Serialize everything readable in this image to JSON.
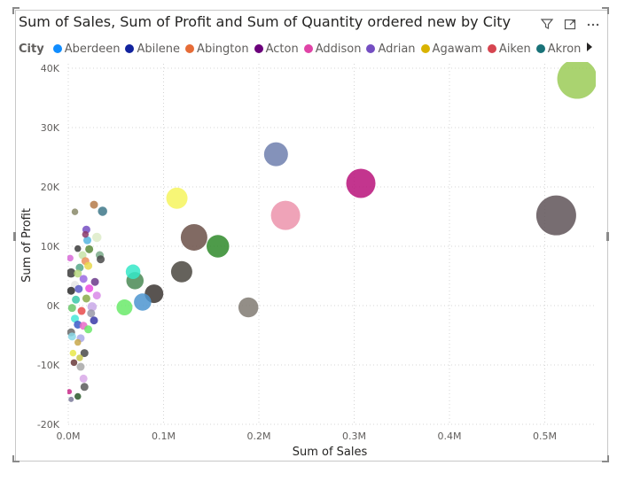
{
  "visual": {
    "title": "Sum of Sales, Sum of Profit and Sum of Quantity ordered new by City",
    "icons": [
      "filter-icon",
      "focus-mode-icon",
      "more-options-icon"
    ]
  },
  "legend": {
    "title": "City",
    "items": [
      {
        "name": "Aberdeen",
        "color": "#118DFF"
      },
      {
        "name": "Abilene",
        "color": "#12239E"
      },
      {
        "name": "Abington",
        "color": "#E66C37"
      },
      {
        "name": "Acton",
        "color": "#6B007B"
      },
      {
        "name": "Addison",
        "color": "#E044A7"
      },
      {
        "name": "Adrian",
        "color": "#744EC2"
      },
      {
        "name": "Agawam",
        "color": "#D9B300"
      },
      {
        "name": "Aiken",
        "color": "#D64550"
      },
      {
        "name": "Akron",
        "color": "#197278"
      }
    ]
  },
  "chart_data": {
    "type": "scatter",
    "title": "Sum of Sales, Sum of Profit and Sum of Quantity ordered new by City",
    "xlabel": "Sum of Sales",
    "ylabel": "Sum of Profit",
    "size_field": "Sum of Quantity",
    "xlim": [
      0,
      550000
    ],
    "ylim": [
      -20000,
      40000
    ],
    "x_ticks": [
      0,
      100000,
      200000,
      300000,
      400000,
      500000
    ],
    "x_tick_labels": [
      "0.0M",
      "0.1M",
      "0.2M",
      "0.3M",
      "0.4M",
      "0.5M"
    ],
    "y_ticks": [
      -20000,
      -10000,
      0,
      10000,
      20000,
      30000,
      40000
    ],
    "y_tick_labels": [
      "-20K",
      "-10K",
      "0K",
      "10K",
      "20K",
      "30K",
      "40K"
    ],
    "grid": true,
    "points": [
      {
        "x": 534000,
        "y": 38200,
        "size": 30,
        "color": "#9BCB57"
      },
      {
        "x": 512000,
        "y": 15200,
        "size": 30,
        "color": "#5F5458"
      },
      {
        "x": 307000,
        "y": 20600,
        "size": 22,
        "color": "#B8127A"
      },
      {
        "x": 218000,
        "y": 25500,
        "size": 18,
        "color": "#6F7FAE"
      },
      {
        "x": 228000,
        "y": 15200,
        "size": 22,
        "color": "#EC93AC"
      },
      {
        "x": 132000,
        "y": 11500,
        "size": 20,
        "color": "#6B5048"
      },
      {
        "x": 157000,
        "y": 10000,
        "size": 17,
        "color": "#2F8A2A"
      },
      {
        "x": 114000,
        "y": 18100,
        "size": 16,
        "color": "#F6F55E"
      },
      {
        "x": 119000,
        "y": 5700,
        "size": 16,
        "color": "#4A4640"
      },
      {
        "x": 189000,
        "y": -300,
        "size": 15,
        "color": "#807A72"
      },
      {
        "x": 90000,
        "y": 2000,
        "size": 14,
        "color": "#3C3632"
      },
      {
        "x": 70000,
        "y": 4200,
        "size": 13,
        "color": "#4A8A55"
      },
      {
        "x": 68000,
        "y": 5700,
        "size": 11,
        "color": "#35E8C8"
      },
      {
        "x": 78000,
        "y": 600,
        "size": 13,
        "color": "#4C95D0"
      },
      {
        "x": 59000,
        "y": -300,
        "size": 12,
        "color": "#6AEA6A"
      },
      {
        "x": 36000,
        "y": 15900,
        "size": 7,
        "color": "#3E7889"
      },
      {
        "x": 27000,
        "y": 17000,
        "size": 6,
        "color": "#B57B4A"
      },
      {
        "x": 7000,
        "y": 15800,
        "size": 5,
        "color": "#8A8A6A"
      },
      {
        "x": 30000,
        "y": 11500,
        "size": 7,
        "color": "#DDEBC8"
      },
      {
        "x": 19000,
        "y": 12800,
        "size": 6,
        "color": "#744EC2"
      },
      {
        "x": 18000,
        "y": 12000,
        "size": 5,
        "color": "#8A3A6A"
      },
      {
        "x": 20000,
        "y": 11000,
        "size": 6,
        "color": "#55B5E0"
      },
      {
        "x": 22000,
        "y": 9500,
        "size": 6,
        "color": "#5A8A3A"
      },
      {
        "x": 10000,
        "y": 9600,
        "size": 5,
        "color": "#3C3C3C"
      },
      {
        "x": 33000,
        "y": 8500,
        "size": 6,
        "color": "#7AAA88"
      },
      {
        "x": 34000,
        "y": 7800,
        "size": 6,
        "color": "#4A4A4A"
      },
      {
        "x": 15000,
        "y": 8500,
        "size": 6,
        "color": "#C7E4A8"
      },
      {
        "x": 18000,
        "y": 7500,
        "size": 6,
        "color": "#EB8F5C"
      },
      {
        "x": 21000,
        "y": 6700,
        "size": 6,
        "color": "#E8D84C"
      },
      {
        "x": 2000,
        "y": 8000,
        "size": 5,
        "color": "#D86AD8"
      },
      {
        "x": 12000,
        "y": 6400,
        "size": 6,
        "color": "#57A88A"
      },
      {
        "x": 3000,
        "y": 5500,
        "size": 7,
        "color": "#3C3C3C"
      },
      {
        "x": 10000,
        "y": 5400,
        "size": 6,
        "color": "#B8D880"
      },
      {
        "x": 28000,
        "y": 4000,
        "size": 6,
        "color": "#6B3A8A"
      },
      {
        "x": 7000,
        "y": 3500,
        "size": 6,
        "color": "#E6E6E6"
      },
      {
        "x": 16000,
        "y": 4500,
        "size": 6,
        "color": "#9A6AE0"
      },
      {
        "x": 22000,
        "y": 2900,
        "size": 6,
        "color": "#EB4CE0"
      },
      {
        "x": 30000,
        "y": 1700,
        "size": 6,
        "color": "#D88AE8"
      },
      {
        "x": 3000,
        "y": 2500,
        "size": 6,
        "color": "#2A2A2A"
      },
      {
        "x": 11000,
        "y": 2800,
        "size": 6,
        "color": "#5A5AC8"
      },
      {
        "x": 8000,
        "y": 1000,
        "size": 6,
        "color": "#3AC8A8"
      },
      {
        "x": 19000,
        "y": 1200,
        "size": 6,
        "color": "#8AAA4A"
      },
      {
        "x": 25000,
        "y": -200,
        "size": 7,
        "color": "#C8A8E8"
      },
      {
        "x": 4000,
        "y": -400,
        "size": 6,
        "color": "#6AC86A"
      },
      {
        "x": 14000,
        "y": -900,
        "size": 6,
        "color": "#E84A4A"
      },
      {
        "x": 24000,
        "y": -1300,
        "size": 6,
        "color": "#9A9AA8"
      },
      {
        "x": 27000,
        "y": -2500,
        "size": 6,
        "color": "#3A3AA8"
      },
      {
        "x": 7000,
        "y": -2200,
        "size": 6,
        "color": "#48E8D8"
      },
      {
        "x": 10000,
        "y": -3200,
        "size": 6,
        "color": "#3A5AC8"
      },
      {
        "x": 16000,
        "y": -3400,
        "size": 6,
        "color": "#E86AC8"
      },
      {
        "x": 21000,
        "y": -4000,
        "size": 6,
        "color": "#6AE86A"
      },
      {
        "x": 3000,
        "y": -4500,
        "size": 6,
        "color": "#6A6A6A"
      },
      {
        "x": 13000,
        "y": -5500,
        "size": 6,
        "color": "#A8A8E8"
      },
      {
        "x": 4000,
        "y": -5200,
        "size": 6,
        "color": "#8AD8E8"
      },
      {
        "x": 10000,
        "y": -6200,
        "size": 5,
        "color": "#C8A84A"
      },
      {
        "x": 17000,
        "y": -8000,
        "size": 6,
        "color": "#4A4A4A"
      },
      {
        "x": 5000,
        "y": -8000,
        "size": 5,
        "color": "#E8E84A"
      },
      {
        "x": 12000,
        "y": -8800,
        "size": 5,
        "color": "#C8C84A"
      },
      {
        "x": 6000,
        "y": -9600,
        "size": 5,
        "color": "#6A3A3A"
      },
      {
        "x": 13000,
        "y": -10300,
        "size": 6,
        "color": "#A8A8A8"
      },
      {
        "x": 16000,
        "y": -12300,
        "size": 6,
        "color": "#D8A8E8"
      },
      {
        "x": 17000,
        "y": -13700,
        "size": 6,
        "color": "#5A5A5A"
      },
      {
        "x": 1000,
        "y": -14500,
        "size": 4,
        "color": "#C82A8A"
      },
      {
        "x": 3000,
        "y": -15800,
        "size": 4,
        "color": "#7A7A9A"
      },
      {
        "x": 10000,
        "y": -15300,
        "size": 5,
        "color": "#2A5A2A"
      }
    ]
  }
}
